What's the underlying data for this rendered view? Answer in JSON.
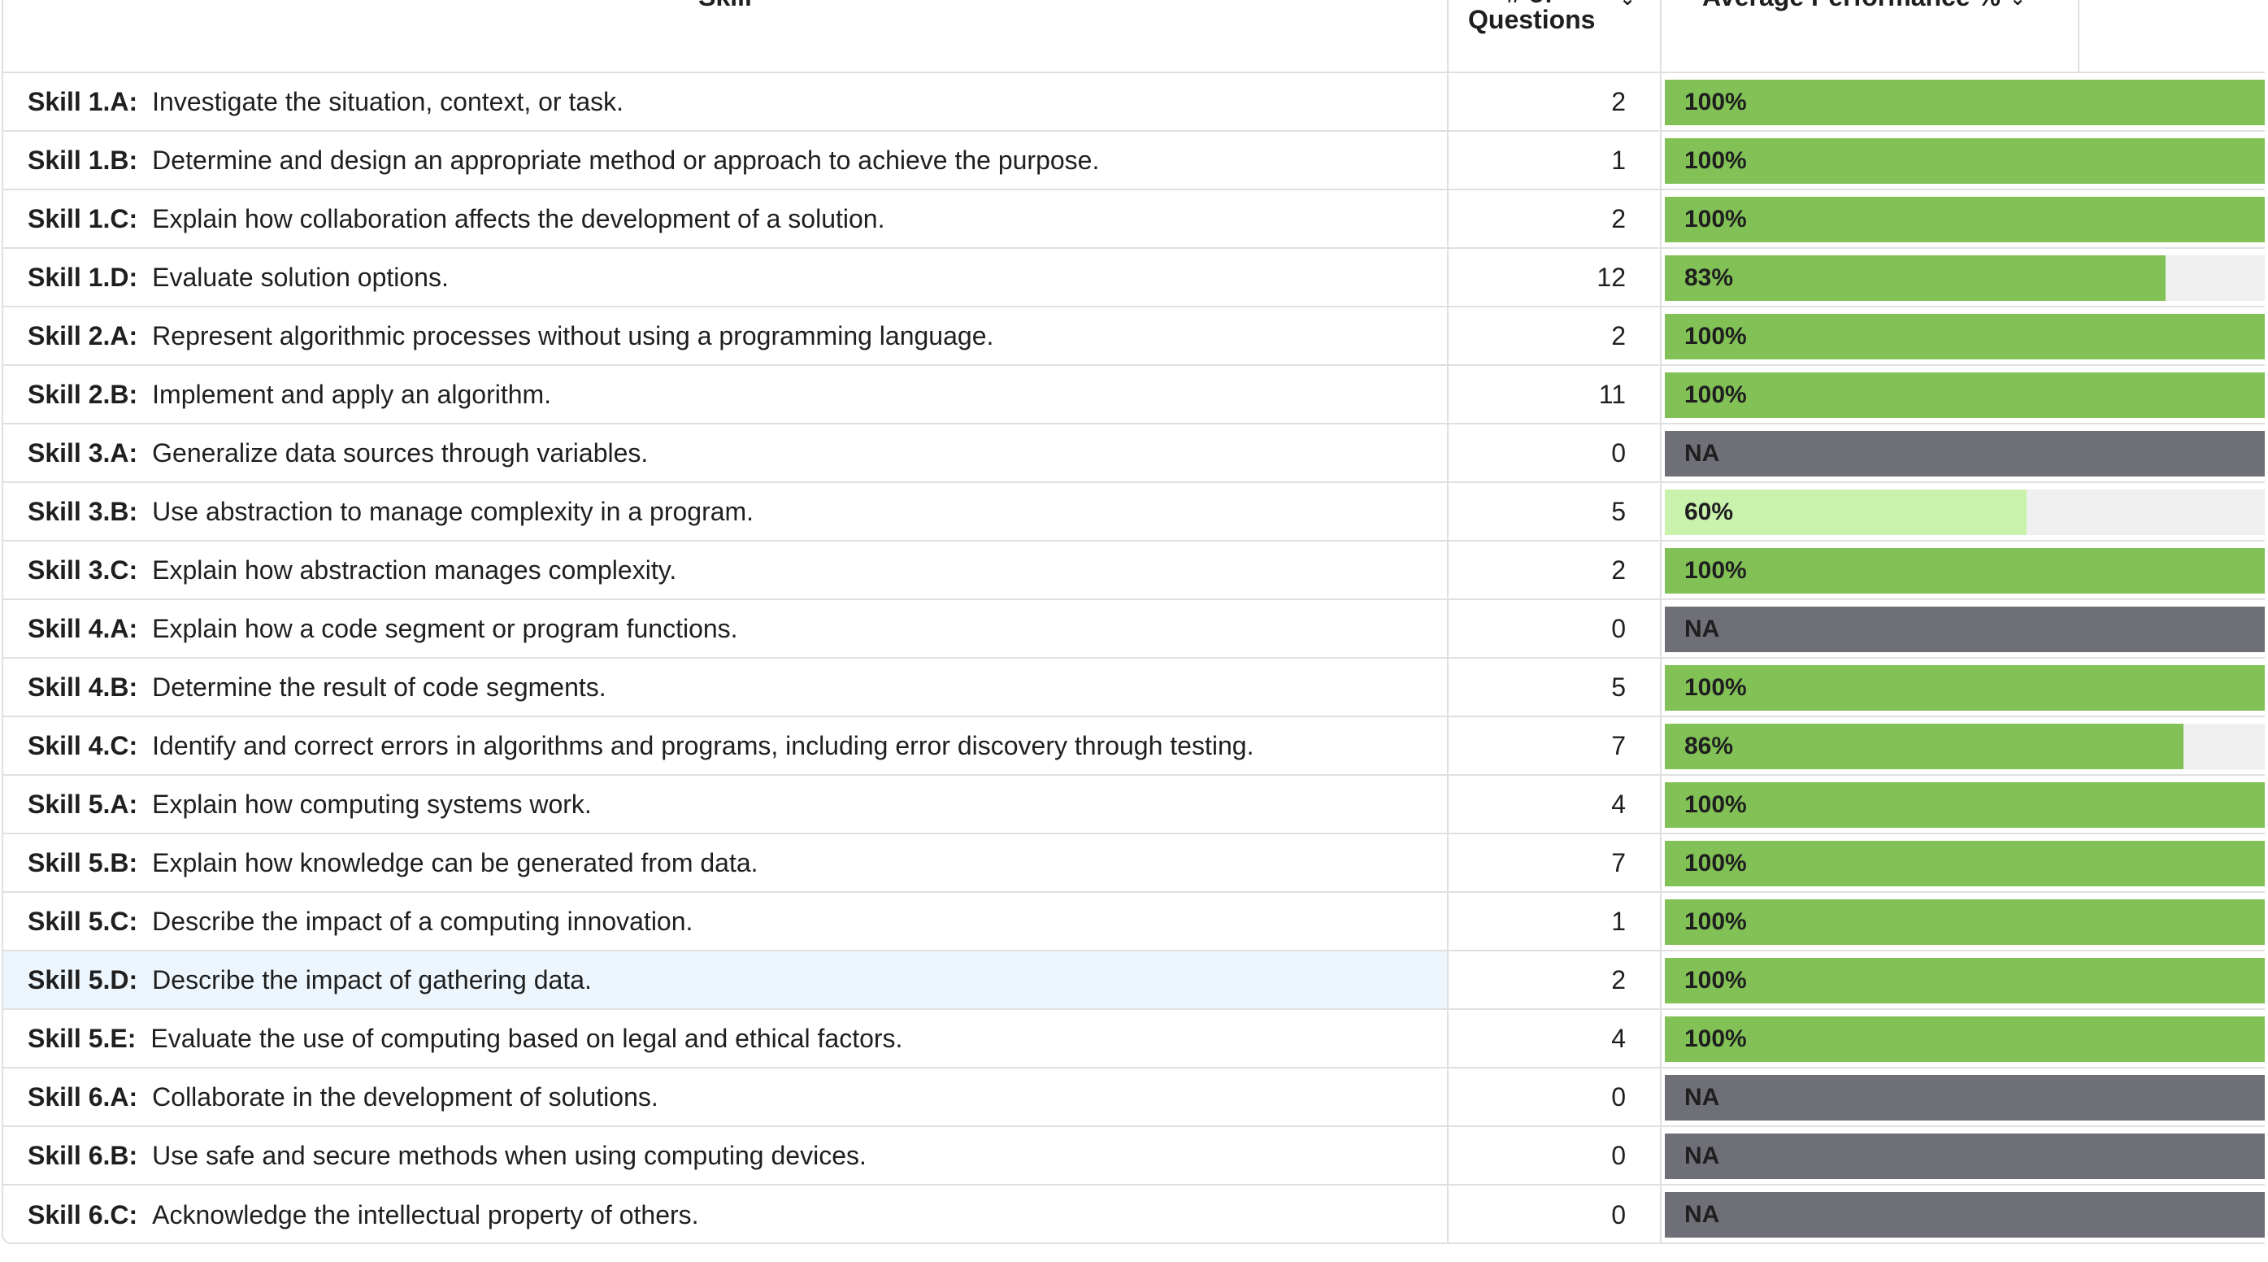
{
  "header": {
    "skill_label": "Skill",
    "questions_line1": "# of",
    "questions_line2": "Questions",
    "performance_label": "Average Performance %",
    "sort_caret": "⌄"
  },
  "colors": {
    "bar_high": "#82c156",
    "bar_mid": "#c9f2ad",
    "bar_na": "#6f6f78",
    "track": "#efefef",
    "row_highlight": "#eef6fd"
  },
  "rows": [
    {
      "code": "Skill 1.A:",
      "description": "Investigate the situation, context, or task.",
      "questions": "2",
      "performance_label": "100%",
      "performance": 1.0,
      "status": "high"
    },
    {
      "code": "Skill 1.B:",
      "description": "Determine and design an appropriate method or approach to achieve the purpose.",
      "questions": "1",
      "performance_label": "100%",
      "performance": 1.0,
      "status": "high"
    },
    {
      "code": "Skill 1.C:",
      "description": "Explain how collaboration affects the development of a solution.",
      "questions": "2",
      "performance_label": "100%",
      "performance": 1.0,
      "status": "high"
    },
    {
      "code": "Skill 1.D:",
      "description": "Evaluate solution options.",
      "questions": "12",
      "performance_label": "83%",
      "performance": 0.83,
      "status": "high"
    },
    {
      "code": "Skill 2.A:",
      "description": "Represent algorithmic processes without using a programming language.",
      "questions": "2",
      "performance_label": "100%",
      "performance": 1.0,
      "status": "high"
    },
    {
      "code": "Skill 2.B:",
      "description": "Implement and apply an algorithm.",
      "questions": "11",
      "performance_label": "100%",
      "performance": 1.0,
      "status": "high"
    },
    {
      "code": "Skill 3.A:",
      "description": "Generalize data sources through variables.",
      "questions": "0",
      "performance_label": "NA",
      "performance": 1.0,
      "status": "na"
    },
    {
      "code": "Skill 3.B:",
      "description": "Use abstraction to manage complexity in a program.",
      "questions": "5",
      "performance_label": "60%",
      "performance": 0.6,
      "status": "mid"
    },
    {
      "code": "Skill 3.C:",
      "description": "Explain how abstraction manages complexity.",
      "questions": "2",
      "performance_label": "100%",
      "performance": 1.0,
      "status": "high"
    },
    {
      "code": "Skill 4.A:",
      "description": "Explain how a code segment or program functions.",
      "questions": "0",
      "performance_label": "NA",
      "performance": 1.0,
      "status": "na"
    },
    {
      "code": "Skill 4.B:",
      "description": "Determine the result of code segments.",
      "questions": "5",
      "performance_label": "100%",
      "performance": 1.0,
      "status": "high"
    },
    {
      "code": "Skill 4.C:",
      "description": "Identify and correct errors in algorithms and programs, including error discovery through testing.",
      "questions": "7",
      "performance_label": "86%",
      "performance": 0.86,
      "status": "high"
    },
    {
      "code": "Skill 5.A:",
      "description": "Explain how computing systems work.",
      "questions": "4",
      "performance_label": "100%",
      "performance": 1.0,
      "status": "high"
    },
    {
      "code": "Skill 5.B:",
      "description": "Explain how knowledge can be generated from data.",
      "questions": "7",
      "performance_label": "100%",
      "performance": 1.0,
      "status": "high"
    },
    {
      "code": "Skill 5.C:",
      "description": "Describe the impact of a computing innovation.",
      "questions": "1",
      "performance_label": "100%",
      "performance": 1.0,
      "status": "high"
    },
    {
      "code": "Skill 5.D:",
      "description": "Describe the impact of gathering data.",
      "questions": "2",
      "performance_label": "100%",
      "performance": 1.0,
      "status": "high",
      "highlight": true
    },
    {
      "code": "Skill 5.E:",
      "description": "Evaluate the use of computing based on legal and ethical factors.",
      "questions": "4",
      "performance_label": "100%",
      "performance": 1.0,
      "status": "high"
    },
    {
      "code": "Skill 6.A:",
      "description": "Collaborate in the development of solutions.",
      "questions": "0",
      "performance_label": "NA",
      "performance": 1.0,
      "status": "na"
    },
    {
      "code": "Skill 6.B:",
      "description": "Use safe and secure methods when using computing devices.",
      "questions": "0",
      "performance_label": "NA",
      "performance": 1.0,
      "status": "na"
    },
    {
      "code": "Skill 6.C:",
      "description": "Acknowledge the intellectual property of others.",
      "questions": "0",
      "performance_label": "NA",
      "performance": 1.0,
      "status": "na"
    }
  ]
}
